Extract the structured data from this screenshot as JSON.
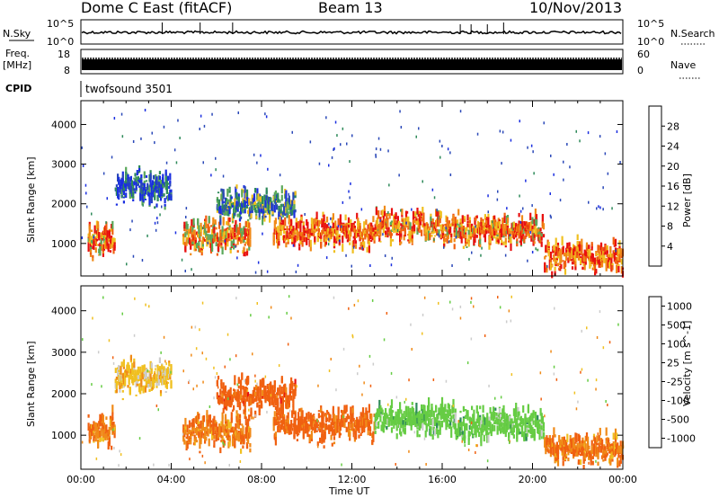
{
  "header": {
    "title": "Dome C East (fitACF)",
    "beam": "Beam 13",
    "date": "10/Nov/2013"
  },
  "strip_nsky": {
    "left_label": "N.Sky",
    "right_label": "N.Search",
    "left_ticks": [
      "10^5",
      "10^0"
    ],
    "right_ticks": [
      "10^5",
      "10^0"
    ]
  },
  "strip_freq": {
    "left_label_1": "Freq.",
    "left_label_2": "[MHz]",
    "right_label": "Nave",
    "left_ticks": [
      "18",
      "8"
    ],
    "right_ticks": [
      "60",
      "0"
    ]
  },
  "strip_cpid": {
    "label": "CPID",
    "program": "twofsound 3501"
  },
  "colors": {
    "power": [
      "#1a2ee0",
      "#2a48b8",
      "#2e8a5a",
      "#5aa85a",
      "#f0c020",
      "#f08a18",
      "#f06010",
      "#e81010"
    ],
    "velocity": [
      "#e81010",
      "#f06010",
      "#f08a18",
      "#f0c020",
      "#cccccc",
      "#66cc44",
      "#2e8a5a",
      "#2a48b8"
    ]
  },
  "chart_data": [
    {
      "type": "heatmap",
      "name": "power",
      "ylabel": "Slant Range [km]",
      "xlabel": "",
      "ylim": [
        180,
        4600
      ],
      "xlim": [
        0,
        24
      ],
      "y_ticks": [
        "1000",
        "2000",
        "3000",
        "4000"
      ],
      "colorbar": {
        "label": "Power [dB]",
        "ticks": [
          "4",
          "8",
          "12",
          "16",
          "20",
          "24",
          "28"
        ],
        "range": [
          0,
          32
        ]
      },
      "echo_bands": [
        {
          "t_start": 0.3,
          "t_end": 1.5,
          "r_center": 1050,
          "value": 24
        },
        {
          "t_start": 1.5,
          "t_end": 4.0,
          "r_center": 2350,
          "value": 6
        },
        {
          "t_start": 4.5,
          "t_end": 7.5,
          "r_center": 1100,
          "value": 22
        },
        {
          "t_start": 6.0,
          "t_end": 9.5,
          "r_center": 1900,
          "value": 10
        },
        {
          "t_start": 8.5,
          "t_end": 13.0,
          "r_center": 1200,
          "value": 26
        },
        {
          "t_start": 13.0,
          "t_end": 16.5,
          "r_center": 1350,
          "value": 24
        },
        {
          "t_start": 16.5,
          "t_end": 20.5,
          "r_center": 1250,
          "value": 24
        },
        {
          "t_start": 20.5,
          "t_end": 24.0,
          "r_center": 600,
          "value": 26
        }
      ]
    },
    {
      "type": "heatmap",
      "name": "velocity",
      "ylabel": "Slant Range [km]",
      "xlabel": "Time UT",
      "ylim": [
        180,
        4600
      ],
      "xlim": [
        0,
        24
      ],
      "x_ticks": [
        "00:00",
        "04:00",
        "08:00",
        "12:00",
        "16:00",
        "20:00",
        "00:00"
      ],
      "y_ticks": [
        "1000",
        "2000",
        "3000",
        "4000"
      ],
      "colorbar": {
        "label": "Velocity [m s^-1]",
        "ticks": [
          "1000",
          "500",
          "100",
          "25",
          "-25",
          "-100",
          "-500",
          "-1000"
        ]
      },
      "echo_bands": [
        {
          "t_start": 0.3,
          "t_end": 1.5,
          "r_center": 1050,
          "value": -100
        },
        {
          "t_start": 1.5,
          "t_end": 4.0,
          "r_center": 2350,
          "value": 0
        },
        {
          "t_start": 4.5,
          "t_end": 7.5,
          "r_center": 1000,
          "value": -100
        },
        {
          "t_start": 6.0,
          "t_end": 9.5,
          "r_center": 1900,
          "value": -300
        },
        {
          "t_start": 8.5,
          "t_end": 13.0,
          "r_center": 1200,
          "value": -200
        },
        {
          "t_start": 13.0,
          "t_end": 16.5,
          "r_center": 1300,
          "value": 300
        },
        {
          "t_start": 16.5,
          "t_end": 20.5,
          "r_center": 1200,
          "value": 300
        },
        {
          "t_start": 20.5,
          "t_end": 24.0,
          "r_center": 600,
          "value": -100
        }
      ]
    }
  ]
}
